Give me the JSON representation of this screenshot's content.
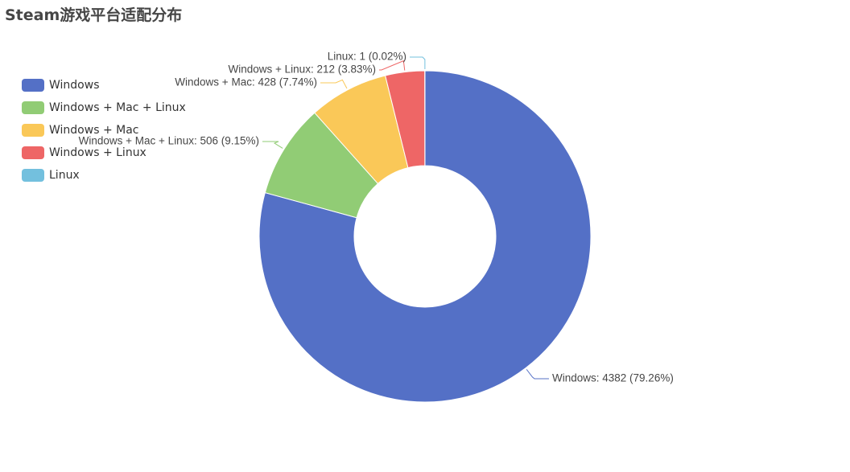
{
  "title": "Steam游戏平台适配分布",
  "chart_data": {
    "type": "pie",
    "subtype": "donut",
    "title": "Steam游戏平台适配分布",
    "legend_position": "left",
    "series": [
      {
        "name": "Windows",
        "value": 4382,
        "percent": "79.26%",
        "color": "#5470c6",
        "label": "Windows: 4382 (79.26%)"
      },
      {
        "name": "Windows + Mac + Linux",
        "value": 506,
        "percent": "9.15%",
        "color": "#91cc75",
        "label": "Windows + Mac + Linux: 506 (9.15%)"
      },
      {
        "name": "Windows + Mac",
        "value": 428,
        "percent": "7.74%",
        "color": "#fac858",
        "label": "Windows + Mac: 428 (7.74%)"
      },
      {
        "name": "Windows + Linux",
        "value": 212,
        "percent": "3.83%",
        "color": "#ee6666",
        "label": "Windows + Linux: 212 (3.83%)"
      },
      {
        "name": "Linux",
        "value": 1,
        "percent": "0.02%",
        "color": "#73c0de",
        "label": "Linux: 1 (0.02%)"
      }
    ]
  }
}
